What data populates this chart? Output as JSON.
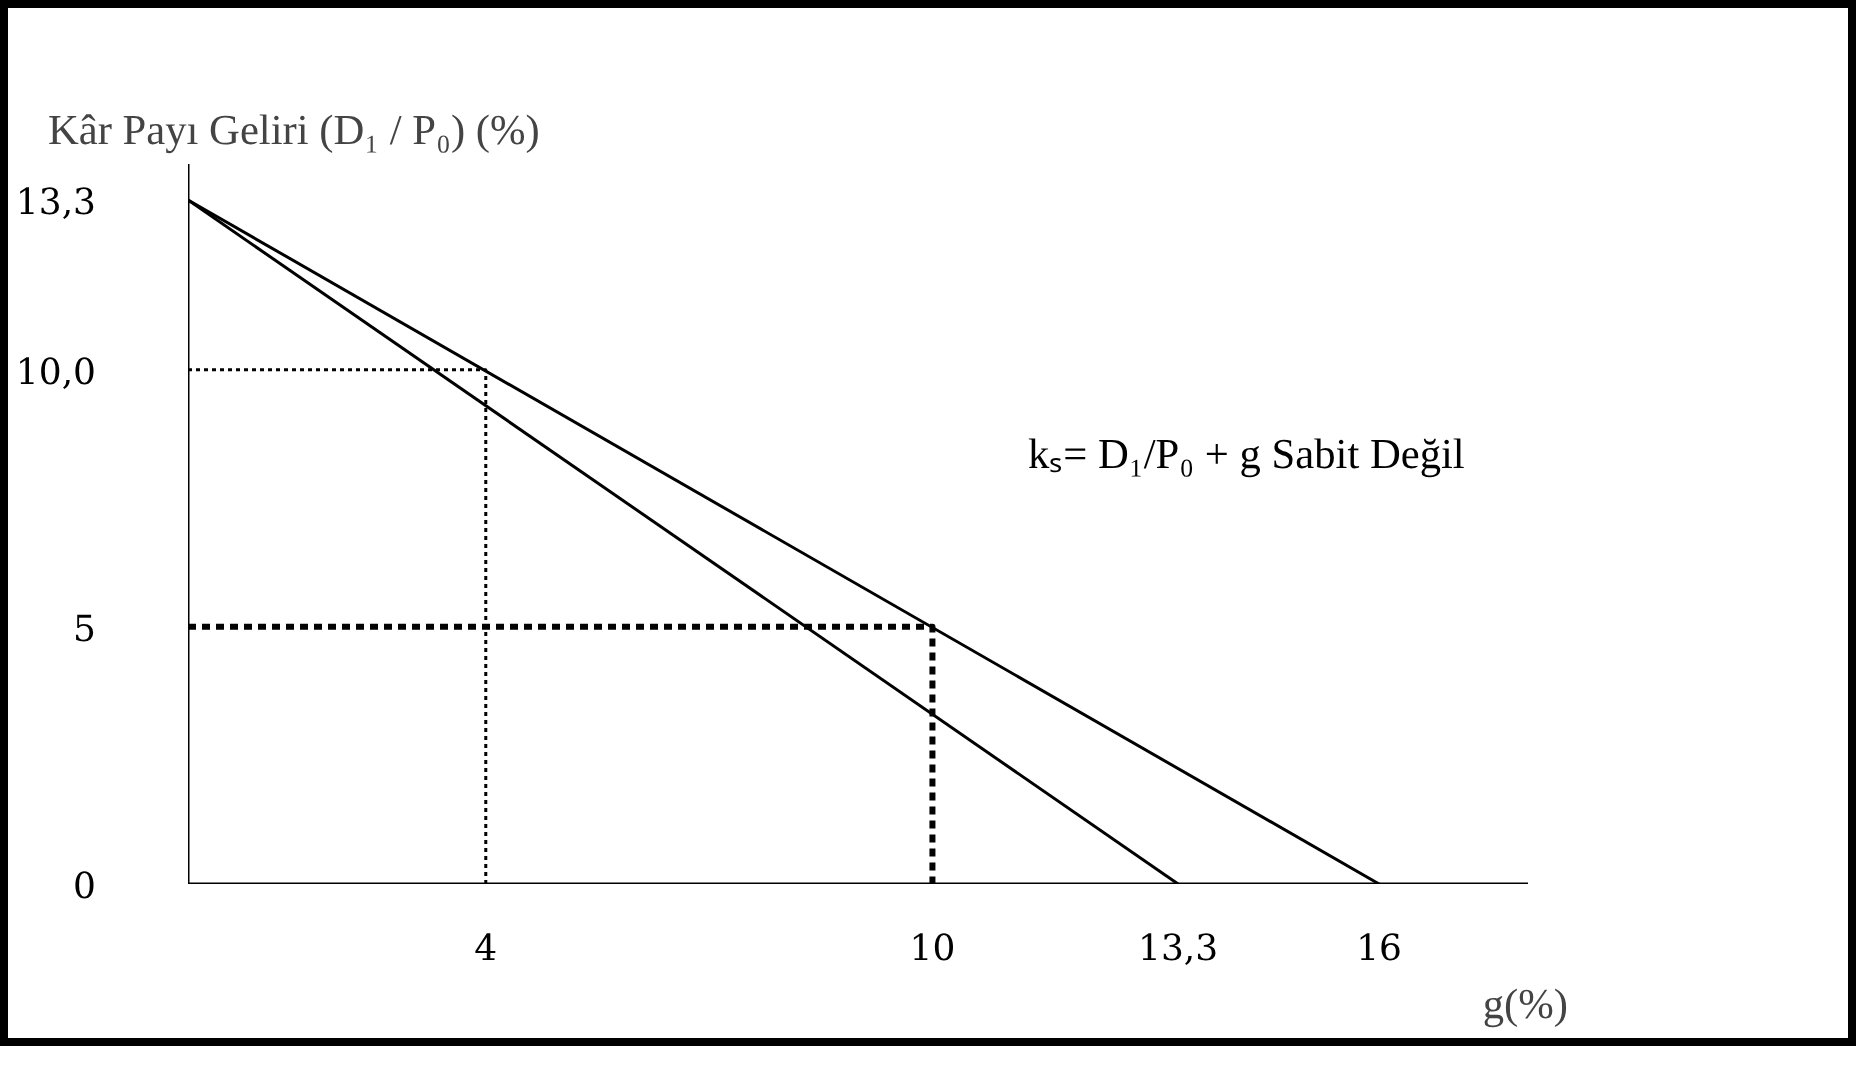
{
  "chart_data": {
    "type": "line",
    "ylabel": "Kâr Payı Geliri (D₁ / P₀) (%)",
    "xlabel": "g(%)",
    "series": [
      {
        "x": [
          0,
          16
        ],
        "values": [
          13.3,
          0
        ],
        "color": "#000000",
        "line_style": "solid"
      },
      {
        "x": [
          0,
          13.3
        ],
        "values": [
          13.3,
          0
        ],
        "color": "#010101",
        "line_style": "solid"
      },
      {
        "x": [
          0,
          4,
          4
        ],
        "values": [
          10,
          10,
          0
        ],
        "color": "#020202",
        "line_style": "dotted"
      },
      {
        "x": [
          0,
          10,
          10
        ],
        "values": [
          5,
          5,
          0
        ],
        "color": "#030303",
        "line_style": "dashed"
      }
    ],
    "xlim": [
      0,
      18
    ],
    "ylim": [
      0,
      14
    ],
    "xticks": [
      4,
      10,
      {
        "value": 13.3,
        "label": "13,3"
      },
      16
    ],
    "yticks": [
      0,
      5,
      {
        "value": 10,
        "label": "10,0"
      },
      {
        "value": 13.3,
        "label": "13,3"
      }
    ],
    "annotations": [
      "kₛ= D₁/P₀ + g  Sabit Değil"
    ],
    "grid": false,
    "marker": "none"
  }
}
